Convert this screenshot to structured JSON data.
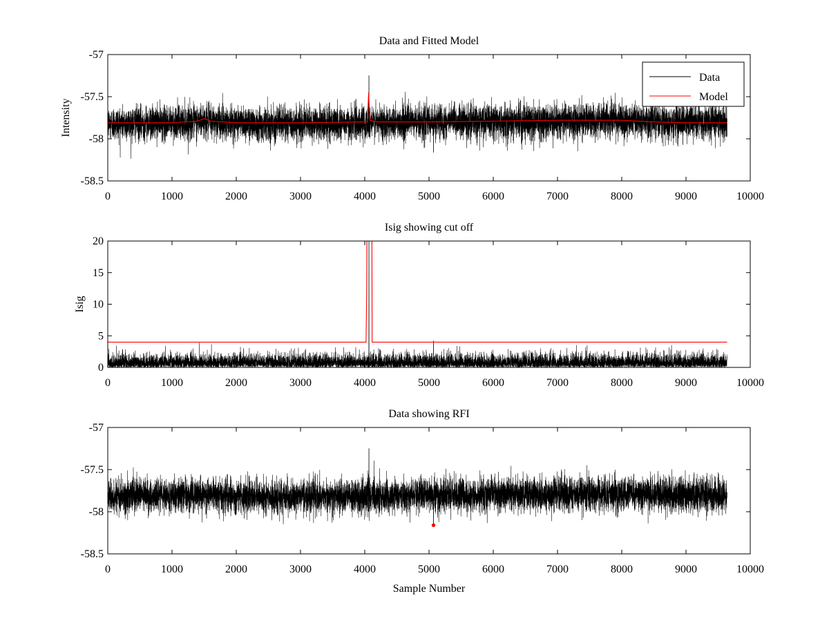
{
  "figure": {
    "background": "#ffffff",
    "colors": {
      "data": "#000000",
      "model": "#ff0000",
      "axes": "#000000"
    }
  },
  "chart_data": [
    {
      "type": "line",
      "title": "Data and Fitted Model",
      "xlabel": "",
      "ylabel": "Intensity",
      "xlim": [
        0,
        10000
      ],
      "ylim": [
        -58.5,
        -57
      ],
      "xticks": [
        0,
        1000,
        2000,
        3000,
        4000,
        5000,
        6000,
        7000,
        8000,
        9000,
        10000
      ],
      "yticks": [
        -57,
        -57.5,
        -58,
        -58.5
      ],
      "xtick_labels": [
        "0",
        "1000",
        "2000",
        "3000",
        "4000",
        "5000",
        "6000",
        "7000",
        "8000",
        "9000",
        "10000"
      ],
      "ytick_labels": [
        "-57",
        "-57.5",
        "-58",
        "-58.5"
      ],
      "grid": false,
      "legend": {
        "position": "top-right",
        "entries": [
          "Data",
          "Model"
        ]
      },
      "series": [
        {
          "name": "Data",
          "color": "#000000",
          "kind": "noise",
          "n_points": 9640,
          "baseline": [
            [
              0,
              -57.82
            ],
            [
              1000,
              -57.81
            ],
            [
              1500,
              -57.79
            ],
            [
              2500,
              -57.82
            ],
            [
              3500,
              -57.82
            ],
            [
              4000,
              -57.81
            ],
            [
              5000,
              -57.8
            ],
            [
              6000,
              -57.8
            ],
            [
              7000,
              -57.79
            ],
            [
              8000,
              -57.78
            ],
            [
              9000,
              -57.8
            ],
            [
              9640,
              -57.8
            ]
          ],
          "half_range": 0.3,
          "spikes": [
            [
              4065,
              -57.25
            ],
            [
              5070,
              -58.16
            ]
          ]
        },
        {
          "name": "Model",
          "color": "#ff0000",
          "points": [
            [
              0,
              -57.81
            ],
            [
              1000,
              -57.81
            ],
            [
              1400,
              -57.79
            ],
            [
              1500,
              -57.76
            ],
            [
              1600,
              -57.79
            ],
            [
              2000,
              -57.81
            ],
            [
              3000,
              -57.81
            ],
            [
              3950,
              -57.8
            ],
            [
              4040,
              -57.8
            ],
            [
              4060,
              -57.45
            ],
            [
              4080,
              -57.78
            ],
            [
              4200,
              -57.8
            ],
            [
              5000,
              -57.8
            ],
            [
              6000,
              -57.79
            ],
            [
              7000,
              -57.78
            ],
            [
              7500,
              -57.78
            ],
            [
              8000,
              -57.78
            ],
            [
              8500,
              -57.8
            ],
            [
              9000,
              -57.81
            ],
            [
              9640,
              -57.81
            ]
          ]
        }
      ]
    },
    {
      "type": "line",
      "title": "Isig showing cut off",
      "xlabel": "",
      "ylabel": "Isig",
      "xlim": [
        0,
        10000
      ],
      "ylim": [
        0,
        20
      ],
      "xticks": [
        0,
        1000,
        2000,
        3000,
        4000,
        5000,
        6000,
        7000,
        8000,
        9000,
        10000
      ],
      "yticks": [
        0,
        5,
        10,
        15,
        20
      ],
      "xtick_labels": [
        "0",
        "1000",
        "2000",
        "3000",
        "4000",
        "5000",
        "6000",
        "7000",
        "8000",
        "9000",
        "10000"
      ],
      "ytick_labels": [
        "0",
        "5",
        "10",
        "15",
        "20"
      ],
      "grid": false,
      "series": [
        {
          "color": "#000000",
          "kind": "abs-noise",
          "n_points": 9640,
          "typical_max": 2.5,
          "peak_max": 4.3,
          "spikes": [
            [
              4065,
              20
            ],
            [
              5070,
              4.2
            ]
          ]
        },
        {
          "color": "#ff0000",
          "points": [
            [
              0,
              4
            ],
            [
              4020,
              4
            ],
            [
              4030,
              12
            ],
            [
              4035,
              25
            ],
            [
              4110,
              25
            ],
            [
              4115,
              4
            ],
            [
              9640,
              4
            ]
          ]
        }
      ]
    },
    {
      "type": "line",
      "title": "Data showing RFI",
      "xlabel": "Sample Number",
      "ylabel": "",
      "xlim": [
        0,
        10000
      ],
      "ylim": [
        -58.5,
        -57
      ],
      "xticks": [
        0,
        1000,
        2000,
        3000,
        4000,
        5000,
        6000,
        7000,
        8000,
        9000,
        10000
      ],
      "yticks": [
        -57,
        -57.5,
        -58,
        -58.5
      ],
      "xtick_labels": [
        "0",
        "1000",
        "2000",
        "3000",
        "4000",
        "5000",
        "6000",
        "7000",
        "8000",
        "9000",
        "10000"
      ],
      "ytick_labels": [
        "-57",
        "-57.5",
        "-58",
        "-58.5"
      ],
      "grid": false,
      "series": [
        {
          "color": "#000000",
          "kind": "noise",
          "n_points": 9640,
          "baseline": [
            [
              0,
              -57.82
            ],
            [
              1000,
              -57.81
            ],
            [
              1500,
              -57.79
            ],
            [
              2500,
              -57.82
            ],
            [
              3500,
              -57.82
            ],
            [
              4000,
              -57.81
            ],
            [
              5000,
              -57.8
            ],
            [
              6000,
              -57.8
            ],
            [
              7000,
              -57.79
            ],
            [
              8000,
              -57.78
            ],
            [
              9000,
              -57.8
            ],
            [
              9640,
              -57.8
            ]
          ],
          "half_range": 0.3,
          "spikes": [
            [
              4065,
              -57.25
            ],
            [
              5070,
              -58.16
            ]
          ]
        },
        {
          "color": "#ff0000",
          "kind": "markers",
          "points": [
            [
              5070,
              -58.16
            ]
          ]
        }
      ]
    }
  ]
}
